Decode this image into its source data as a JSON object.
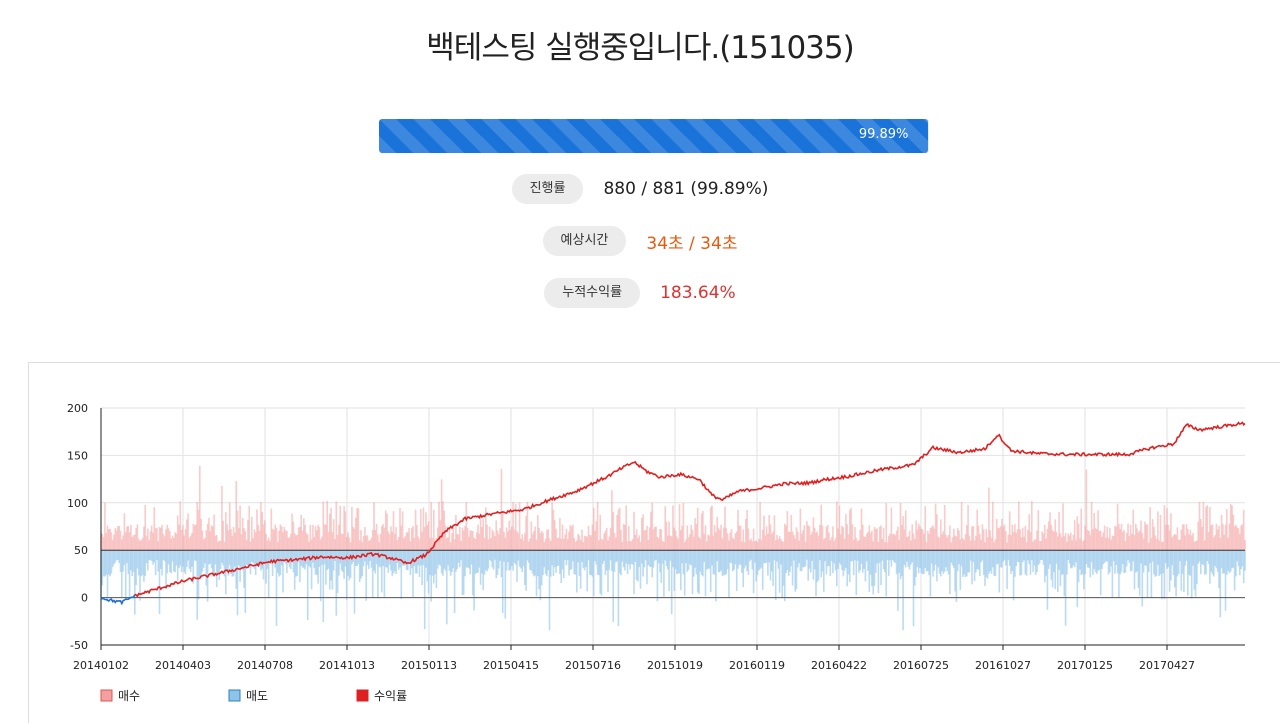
{
  "page": {
    "title": "백테스팅 실행중입니다.(151035)"
  },
  "progress": {
    "fraction": 0.9989,
    "label": "99.89%",
    "color": "#1a73d9"
  },
  "stats": [
    {
      "label": "진행률",
      "value": "880 / 881 (99.89%)",
      "color": "#222222"
    },
    {
      "label": "예상시간",
      "value": "34초 / 34초",
      "color": "#e8590c"
    },
    {
      "label": "누적수익률",
      "value": "183.64%",
      "color": "#e03131"
    }
  ],
  "chart_data": {
    "type": "bar+line",
    "ylim": [
      -50,
      200
    ],
    "yticks": [
      -50,
      0,
      50,
      100,
      150,
      200
    ],
    "grid": true,
    "baseline": 50,
    "x_count": 881,
    "xtick_labels": [
      "20140102",
      "20140403",
      "20140708",
      "20141013",
      "20150113",
      "20150415",
      "20150716",
      "20151019",
      "20160119",
      "20160422",
      "20160725",
      "20161027",
      "20170125",
      "20170427"
    ],
    "legend": [
      "매수",
      "매도",
      "수익률"
    ],
    "legend_position": "bottom-left",
    "series_colors": {
      "buy": "#f4a0a0",
      "sell": "#8ec3ea",
      "return": "#e02020"
    },
    "return_keypoints": [
      [
        0,
        0
      ],
      [
        8,
        -3
      ],
      [
        16,
        -5
      ],
      [
        26,
        2
      ],
      [
        45,
        10
      ],
      [
        65,
        18
      ],
      [
        95,
        27
      ],
      [
        130,
        38
      ],
      [
        150,
        40
      ],
      [
        170,
        43
      ],
      [
        190,
        42
      ],
      [
        210,
        46
      ],
      [
        225,
        41
      ],
      [
        235,
        36
      ],
      [
        250,
        45
      ],
      [
        265,
        70
      ],
      [
        280,
        83
      ],
      [
        300,
        88
      ],
      [
        325,
        93
      ],
      [
        345,
        103
      ],
      [
        365,
        112
      ],
      [
        390,
        128
      ],
      [
        400,
        136
      ],
      [
        410,
        143
      ],
      [
        420,
        133
      ],
      [
        430,
        127
      ],
      [
        445,
        130
      ],
      [
        460,
        125
      ],
      [
        470,
        108
      ],
      [
        478,
        103
      ],
      [
        490,
        112
      ],
      [
        510,
        116
      ],
      [
        525,
        120
      ],
      [
        545,
        121
      ],
      [
        555,
        124
      ],
      [
        575,
        128
      ],
      [
        600,
        135
      ],
      [
        625,
        140
      ],
      [
        640,
        158
      ],
      [
        660,
        153
      ],
      [
        680,
        157
      ],
      [
        690,
        172
      ],
      [
        700,
        155
      ],
      [
        720,
        152
      ],
      [
        745,
        151
      ],
      [
        765,
        151
      ],
      [
        790,
        151
      ],
      [
        808,
        158
      ],
      [
        825,
        162
      ],
      [
        835,
        182
      ],
      [
        845,
        177
      ],
      [
        860,
        180
      ],
      [
        874,
        183
      ],
      [
        880,
        183.64
      ]
    ]
  }
}
